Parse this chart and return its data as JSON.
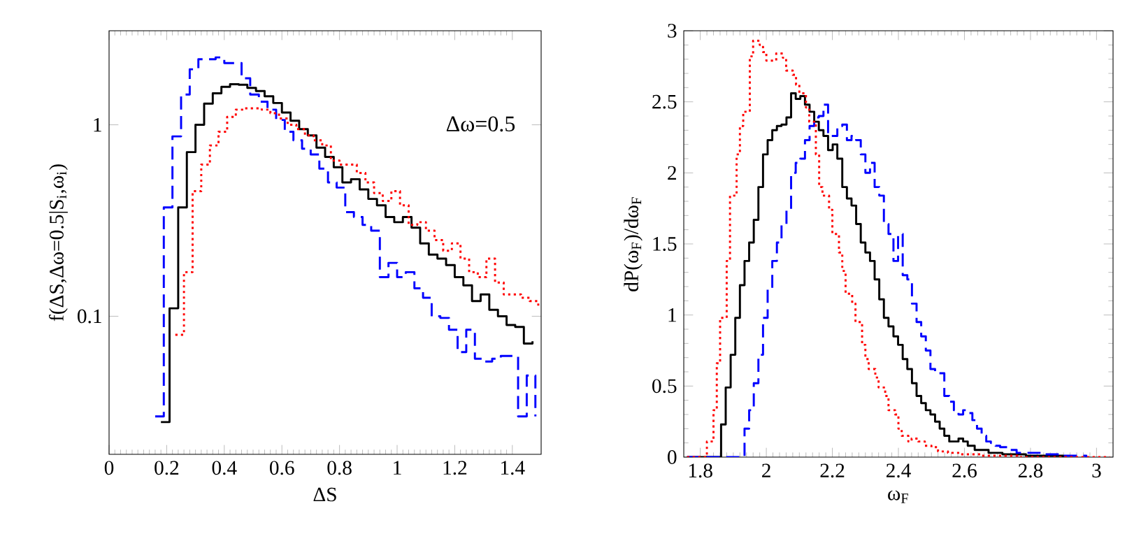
{
  "chart_data": [
    {
      "type": "step",
      "xlabel": "ΔS",
      "ylabel": "f(ΔS,Δω=0.5|S$_{i}$,ω$_{i}$)",
      "annotations": [
        "Δω=0.5"
      ],
      "log": "y",
      "xlim": [
        0,
        1.5
      ],
      "ylim": [
        0.019,
        3.1
      ],
      "xticks": [
        0,
        0.2,
        0.4,
        0.6,
        0.8,
        1,
        1.2,
        1.4
      ],
      "yticks": [
        0.1,
        1
      ],
      "series": [
        {
          "color": "#000000",
          "line_style": "solid",
          "x": [
            0.18,
            0.21,
            0.24,
            0.27,
            0.3,
            0.33,
            0.36,
            0.39,
            0.42,
            0.45,
            0.48,
            0.51,
            0.54,
            0.57,
            0.6,
            0.63,
            0.66,
            0.69,
            0.72,
            0.75,
            0.78,
            0.81,
            0.84,
            0.87,
            0.9,
            0.93,
            0.96,
            0.99,
            1.02,
            1.05,
            1.08,
            1.11,
            1.14,
            1.17,
            1.2,
            1.23,
            1.26,
            1.29,
            1.32,
            1.35,
            1.38,
            1.41,
            1.44,
            1.47
          ],
          "values": [
            0.028,
            0.11,
            0.37,
            0.72,
            1.0,
            1.29,
            1.46,
            1.58,
            1.63,
            1.62,
            1.56,
            1.5,
            1.41,
            1.3,
            1.16,
            1.05,
            0.95,
            0.88,
            0.76,
            0.68,
            0.6,
            0.5,
            0.52,
            0.46,
            0.41,
            0.38,
            0.33,
            0.31,
            0.33,
            0.29,
            0.24,
            0.21,
            0.2,
            0.185,
            0.16,
            0.145,
            0.12,
            0.13,
            0.108,
            0.1,
            0.09,
            0.088,
            0.072,
            0.074
          ]
        },
        {
          "color": "#0000ff",
          "line_style": "dashed",
          "x": [
            0.16,
            0.19,
            0.22,
            0.25,
            0.28,
            0.31,
            0.34,
            0.37,
            0.4,
            0.43,
            0.46,
            0.49,
            0.52,
            0.55,
            0.58,
            0.61,
            0.64,
            0.67,
            0.7,
            0.73,
            0.76,
            0.79,
            0.82,
            0.85,
            0.88,
            0.91,
            0.94,
            0.97,
            1.0,
            1.03,
            1.06,
            1.09,
            1.12,
            1.15,
            1.18,
            1.21,
            1.24,
            1.27,
            1.3,
            1.33,
            1.36,
            1.39,
            1.42,
            1.45,
            1.48
          ],
          "values": [
            0.03,
            0.37,
            0.87,
            1.44,
            1.95,
            2.2,
            2.2,
            2.25,
            2.1,
            2.1,
            1.75,
            1.44,
            1.32,
            1.2,
            1.06,
            0.92,
            0.83,
            0.75,
            0.7,
            0.59,
            0.5,
            0.47,
            0.35,
            0.33,
            0.3,
            0.28,
            0.16,
            0.19,
            0.16,
            0.17,
            0.14,
            0.125,
            0.1,
            0.098,
            0.085,
            0.065,
            0.085,
            0.06,
            0.058,
            0.06,
            0.062,
            0.062,
            0.03,
            0.049,
            0.03
          ]
        },
        {
          "color": "#ff0000",
          "line_style": "dotted",
          "x": [
            0.23,
            0.26,
            0.29,
            0.32,
            0.35,
            0.38,
            0.41,
            0.44,
            0.47,
            0.5,
            0.53,
            0.56,
            0.59,
            0.62,
            0.65,
            0.68,
            0.71,
            0.74,
            0.77,
            0.8,
            0.83,
            0.86,
            0.89,
            0.92,
            0.95,
            0.98,
            1.01,
            1.04,
            1.07,
            1.1,
            1.13,
            1.16,
            1.19,
            1.22,
            1.25,
            1.28,
            1.31,
            1.34,
            1.37,
            1.4,
            1.43,
            1.46,
            1.49
          ],
          "values": [
            0.08,
            0.17,
            0.45,
            0.62,
            0.78,
            0.92,
            1.1,
            1.2,
            1.22,
            1.22,
            1.2,
            1.15,
            1.08,
            1.0,
            0.95,
            0.88,
            0.83,
            0.78,
            0.65,
            0.62,
            0.62,
            0.56,
            0.5,
            0.44,
            0.4,
            0.45,
            0.38,
            0.3,
            0.31,
            0.28,
            0.25,
            0.22,
            0.24,
            0.2,
            0.17,
            0.16,
            0.2,
            0.15,
            0.13,
            0.13,
            0.125,
            0.12,
            0.11
          ]
        }
      ]
    },
    {
      "type": "step",
      "xlabel": "ω$_{F}$",
      "ylabel": "dP(ω$_{F}$)/dω$_{F}$",
      "xlim": [
        1.75,
        3.05
      ],
      "ylim": [
        0,
        3
      ],
      "xticks": [
        1.8,
        2,
        2.2,
        2.4,
        2.6,
        2.8,
        3
      ],
      "yticks": [
        0,
        0.5,
        1,
        1.5,
        2,
        2.5,
        3
      ],
      "series": [
        {
          "color": "#000000",
          "line_style": "solid",
          "x": [
            1.76,
            1.856,
            1.863,
            1.877,
            1.892,
            1.906,
            1.92,
            1.934,
            1.948,
            1.962,
            1.976,
            1.99,
            2.004,
            2.018,
            2.032,
            2.046,
            2.061,
            2.075,
            2.089,
            2.103,
            2.117,
            2.131,
            2.145,
            2.159,
            2.173,
            2.187,
            2.201,
            2.215,
            2.23,
            2.244,
            2.258,
            2.272,
            2.286,
            2.3,
            2.314,
            2.328,
            2.342,
            2.356,
            2.37,
            2.385,
            2.399,
            2.413,
            2.427,
            2.441,
            2.455,
            2.469,
            2.483,
            2.497,
            2.511,
            2.525,
            2.539,
            2.554,
            2.568,
            2.582,
            2.596,
            2.61,
            2.631,
            2.673,
            2.715,
            2.786,
            2.899
          ],
          "values": [
            0,
            0,
            0.23,
            0.49,
            0.72,
            0.98,
            1.21,
            1.38,
            1.51,
            1.67,
            1.9,
            2.13,
            2.23,
            2.3,
            2.33,
            2.34,
            2.39,
            2.56,
            2.52,
            2.54,
            2.48,
            2.43,
            2.36,
            2.3,
            2.26,
            2.16,
            2.2,
            2.1,
            1.9,
            1.82,
            1.77,
            1.64,
            1.51,
            1.44,
            1.38,
            1.25,
            1.11,
            0.98,
            0.92,
            0.85,
            0.79,
            0.69,
            0.62,
            0.52,
            0.43,
            0.38,
            0.33,
            0.3,
            0.25,
            0.2,
            0.15,
            0.11,
            0.11,
            0.13,
            0.11,
            0.08,
            0.05,
            0.03,
            0.02,
            0.01,
            0
          ]
        },
        {
          "color": "#0000ff",
          "line_style": "dashed",
          "x": [
            1.76,
            1.92,
            1.934,
            1.948,
            1.962,
            1.976,
            1.99,
            2.004,
            2.018,
            2.032,
            2.046,
            2.061,
            2.075,
            2.089,
            2.103,
            2.117,
            2.131,
            2.145,
            2.159,
            2.173,
            2.187,
            2.201,
            2.215,
            2.23,
            2.244,
            2.258,
            2.272,
            2.286,
            2.3,
            2.314,
            2.328,
            2.342,
            2.356,
            2.37,
            2.385,
            2.399,
            2.413,
            2.427,
            2.441,
            2.455,
            2.469,
            2.483,
            2.497,
            2.511,
            2.525,
            2.539,
            2.554,
            2.568,
            2.582,
            2.596,
            2.61,
            2.624,
            2.638,
            2.652,
            2.666,
            2.68,
            2.694,
            2.708,
            2.73,
            2.758,
            2.8,
            2.842,
            2.899,
            2.969
          ],
          "values": [
            0,
            0,
            0.2,
            0.33,
            0.52,
            0.72,
            0.98,
            1.18,
            1.38,
            1.51,
            1.64,
            1.74,
            2.0,
            2.07,
            2.1,
            2.23,
            2.33,
            2.39,
            2.4,
            2.48,
            2.26,
            2.26,
            2.33,
            2.34,
            2.23,
            2.26,
            2.23,
            2.13,
            2.0,
            2.07,
            1.9,
            1.84,
            1.64,
            1.57,
            1.38,
            1.57,
            1.28,
            1.25,
            1.08,
            0.95,
            0.85,
            0.75,
            0.62,
            0.59,
            0.59,
            0.43,
            0.39,
            0.33,
            0.3,
            0.33,
            0.31,
            0.26,
            0.2,
            0.15,
            0.11,
            0.1,
            0.08,
            0.07,
            0.05,
            0.03,
            0.03,
            0.02,
            0.01,
            0
          ]
        },
        {
          "color": "#ff0000",
          "line_style": "dotted",
          "x": [
            1.76,
            1.81,
            1.82,
            1.84,
            1.85,
            1.86,
            1.88,
            1.89,
            1.91,
            1.92,
            1.93,
            1.95,
            1.96,
            1.98,
            1.99,
            2.0,
            2.02,
            2.03,
            2.05,
            2.06,
            2.08,
            2.09,
            2.1,
            2.12,
            2.13,
            2.15,
            2.16,
            2.17,
            2.19,
            2.2,
            2.22,
            2.23,
            2.24,
            2.26,
            2.27,
            2.29,
            2.3,
            2.31,
            2.33,
            2.34,
            2.36,
            2.37,
            2.39,
            2.4,
            2.41,
            2.43,
            2.44,
            2.46,
            2.47,
            2.48,
            2.5,
            2.52,
            2.55,
            2.59,
            2.65,
            2.76,
            3.04
          ],
          "values": [
            0,
            0,
            0.11,
            0.33,
            0.66,
            0.98,
            1.38,
            1.84,
            2.13,
            2.33,
            2.43,
            2.82,
            2.93,
            2.9,
            2.85,
            2.79,
            2.79,
            2.84,
            2.81,
            2.72,
            2.69,
            2.62,
            2.56,
            2.46,
            2.36,
            2.13,
            1.9,
            1.84,
            1.74,
            1.57,
            1.44,
            1.31,
            1.15,
            1.08,
            0.95,
            0.79,
            0.69,
            0.62,
            0.56,
            0.49,
            0.43,
            0.33,
            0.3,
            0.2,
            0.15,
            0.11,
            0.13,
            0.11,
            0.11,
            0.08,
            0.07,
            0.04,
            0.03,
            0.02,
            0.01,
            0,
            0
          ]
        }
      ]
    }
  ]
}
